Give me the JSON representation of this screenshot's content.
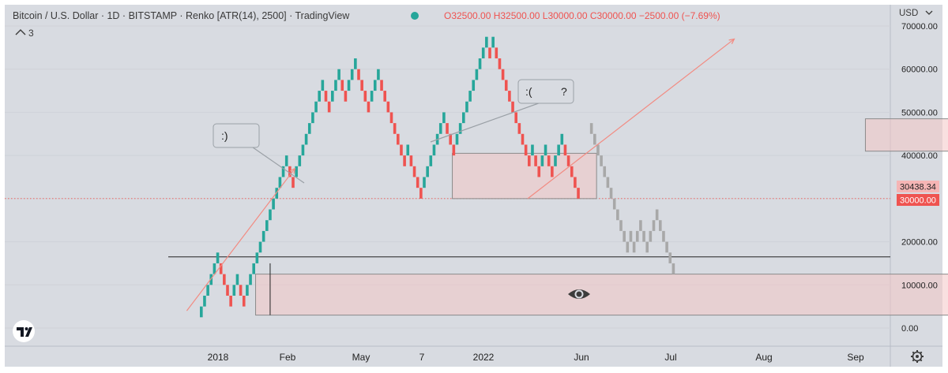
{
  "header": {
    "title": "Bitcoin / U.S. Dollar · 1D · BITSTAMP · Renko [ATR(14), 2500] · TradingView",
    "ohlc": "O32500.00 H32500.00 L30000.00 C30000.00 −2500.00 (−7.69%)",
    "collapse_label": "3"
  },
  "price_scale": {
    "currency": "USD",
    "ticks": [
      {
        "value": 0,
        "label": "0.00"
      },
      {
        "value": 10000,
        "label": "10000.00"
      },
      {
        "value": 20000,
        "label": "20000.00"
      },
      {
        "value": 30000,
        "label": "30000.00"
      },
      {
        "value": 40000,
        "label": "40000.00"
      },
      {
        "value": 50000,
        "label": "50000.00"
      },
      {
        "value": 60000,
        "label": "60000.00"
      },
      {
        "value": 70000,
        "label": "70000.00"
      }
    ],
    "last_price_label": "30438.34",
    "close_label": "30000.00"
  },
  "time_axis": {
    "labels": [
      {
        "label": "2018",
        "bold": true
      },
      {
        "label": "Feb",
        "bold": false
      },
      {
        "label": "May",
        "bold": false
      },
      {
        "label": "7",
        "bold": false
      },
      {
        "label": "2022",
        "bold": true
      },
      {
        "label": "Jun",
        "bold": false
      },
      {
        "label": "Jul",
        "bold": false
      },
      {
        "label": "Aug",
        "bold": false
      },
      {
        "label": "Sep",
        "bold": false
      }
    ]
  },
  "annotations": {
    "bubble_smile": ":)",
    "bubble_sad": ":(",
    "bubble_question": "?"
  },
  "colors": {
    "up": "#26a69a",
    "down": "#ef5350",
    "projection": "#a8a8a8",
    "zone_fill": "#f4c7c7",
    "arrow": "#f28b82",
    "price_line": "#ef5350",
    "background": "#ffffff",
    "pane_border": "#d1d4dc"
  },
  "chart_data": {
    "type": "renko",
    "box_size": 2500,
    "ylim": [
      -3000,
      72000
    ],
    "bricks": [
      {
        "dir": "up",
        "low": 2500
      },
      {
        "dir": "up",
        "low": 5000
      },
      {
        "dir": "up",
        "low": 7500
      },
      {
        "dir": "up",
        "low": 10000
      },
      {
        "dir": "up",
        "low": 12500
      },
      {
        "dir": "up",
        "low": 15000
      },
      {
        "dir": "down",
        "low": 12500
      },
      {
        "dir": "down",
        "low": 10000
      },
      {
        "dir": "down",
        "low": 7500
      },
      {
        "dir": "down",
        "low": 5000
      },
      {
        "dir": "up",
        "low": 7500
      },
      {
        "dir": "up",
        "low": 10000
      },
      {
        "dir": "down",
        "low": 7500
      },
      {
        "dir": "down",
        "low": 5000
      },
      {
        "dir": "up",
        "low": 7500
      },
      {
        "dir": "up",
        "low": 10000
      },
      {
        "dir": "up",
        "low": 12500
      },
      {
        "dir": "up",
        "low": 15000
      },
      {
        "dir": "up",
        "low": 17500
      },
      {
        "dir": "up",
        "low": 20000
      },
      {
        "dir": "up",
        "low": 22500
      },
      {
        "dir": "up",
        "low": 25000
      },
      {
        "dir": "up",
        "low": 27500
      },
      {
        "dir": "up",
        "low": 30000
      },
      {
        "dir": "up",
        "low": 32500
      },
      {
        "dir": "up",
        "low": 35000
      },
      {
        "dir": "up",
        "low": 37500
      },
      {
        "dir": "down",
        "low": 35000
      },
      {
        "dir": "down",
        "low": 32500
      },
      {
        "dir": "up",
        "low": 35000
      },
      {
        "dir": "up",
        "low": 37500
      },
      {
        "dir": "up",
        "low": 40000
      },
      {
        "dir": "up",
        "low": 42500
      },
      {
        "dir": "up",
        "low": 45000
      },
      {
        "dir": "up",
        "low": 47500
      },
      {
        "dir": "up",
        "low": 50000
      },
      {
        "dir": "up",
        "low": 52500
      },
      {
        "dir": "up",
        "low": 55000
      },
      {
        "dir": "down",
        "low": 52500
      },
      {
        "dir": "down",
        "low": 50000
      },
      {
        "dir": "up",
        "low": 52500
      },
      {
        "dir": "up",
        "low": 55000
      },
      {
        "dir": "up",
        "low": 57500
      },
      {
        "dir": "down",
        "low": 55000
      },
      {
        "dir": "down",
        "low": 52500
      },
      {
        "dir": "up",
        "low": 55000
      },
      {
        "dir": "up",
        "low": 57500
      },
      {
        "dir": "up",
        "low": 60000
      },
      {
        "dir": "down",
        "low": 57500
      },
      {
        "dir": "down",
        "low": 55000
      },
      {
        "dir": "down",
        "low": 52500
      },
      {
        "dir": "down",
        "low": 50000
      },
      {
        "dir": "up",
        "low": 52500
      },
      {
        "dir": "up",
        "low": 55000
      },
      {
        "dir": "up",
        "low": 57500
      },
      {
        "dir": "down",
        "low": 55000
      },
      {
        "dir": "down",
        "low": 52500
      },
      {
        "dir": "down",
        "low": 50000
      },
      {
        "dir": "down",
        "low": 47500
      },
      {
        "dir": "down",
        "low": 45000
      },
      {
        "dir": "down",
        "low": 42500
      },
      {
        "dir": "down",
        "low": 40000
      },
      {
        "dir": "down",
        "low": 37500
      },
      {
        "dir": "up",
        "low": 40000
      },
      {
        "dir": "down",
        "low": 37500
      },
      {
        "dir": "down",
        "low": 35000
      },
      {
        "dir": "down",
        "low": 32500
      },
      {
        "dir": "down",
        "low": 30000
      },
      {
        "dir": "up",
        "low": 32500
      },
      {
        "dir": "up",
        "low": 35000
      },
      {
        "dir": "up",
        "low": 37500
      },
      {
        "dir": "up",
        "low": 40000
      },
      {
        "dir": "up",
        "low": 42500
      },
      {
        "dir": "up",
        "low": 45000
      },
      {
        "dir": "up",
        "low": 47500
      },
      {
        "dir": "down",
        "low": 45000
      },
      {
        "dir": "down",
        "low": 42500
      },
      {
        "dir": "down",
        "low": 40000
      },
      {
        "dir": "up",
        "low": 42500
      },
      {
        "dir": "up",
        "low": 45000
      },
      {
        "dir": "up",
        "low": 47500
      },
      {
        "dir": "up",
        "low": 50000
      },
      {
        "dir": "up",
        "low": 52500
      },
      {
        "dir": "up",
        "low": 55000
      },
      {
        "dir": "up",
        "low": 57500
      },
      {
        "dir": "up",
        "low": 60000
      },
      {
        "dir": "up",
        "low": 62500
      },
      {
        "dir": "up",
        "low": 65000
      },
      {
        "dir": "down",
        "low": 62500
      },
      {
        "dir": "up",
        "low": 65000
      },
      {
        "dir": "down",
        "low": 62500
      },
      {
        "dir": "down",
        "low": 60000
      },
      {
        "dir": "down",
        "low": 57500
      },
      {
        "dir": "down",
        "low": 55000
      },
      {
        "dir": "down",
        "low": 52500
      },
      {
        "dir": "down",
        "low": 50000
      },
      {
        "dir": "down",
        "low": 47500
      },
      {
        "dir": "down",
        "low": 45000
      },
      {
        "dir": "down",
        "low": 42500
      },
      {
        "dir": "down",
        "low": 40000
      },
      {
        "dir": "down",
        "low": 37500
      },
      {
        "dir": "up",
        "low": 40000
      },
      {
        "dir": "down",
        "low": 37500
      },
      {
        "dir": "down",
        "low": 35000
      },
      {
        "dir": "up",
        "low": 37500
      },
      {
        "dir": "up",
        "low": 40000
      },
      {
        "dir": "down",
        "low": 37500
      },
      {
        "dir": "down",
        "low": 35000
      },
      {
        "dir": "up",
        "low": 37500
      },
      {
        "dir": "up",
        "low": 40000
      },
      {
        "dir": "up",
        "low": 42500
      },
      {
        "dir": "down",
        "low": 40000
      },
      {
        "dir": "down",
        "low": 37500
      },
      {
        "dir": "down",
        "low": 35000
      },
      {
        "dir": "down",
        "low": 32500
      },
      {
        "dir": "down",
        "low": 30000
      }
    ],
    "projection_bricks": [
      {
        "low": 45000
      },
      {
        "low": 42500
      },
      {
        "low": 40000
      },
      {
        "low": 37500
      },
      {
        "low": 35000
      },
      {
        "low": 32500
      },
      {
        "low": 30000
      },
      {
        "low": 27500
      },
      {
        "low": 25000
      },
      {
        "low": 22500
      },
      {
        "low": 20000
      },
      {
        "low": 17500
      },
      {
        "low": 20000
      },
      {
        "low": 17500
      },
      {
        "low": 20000
      },
      {
        "low": 22500
      },
      {
        "low": 20000
      },
      {
        "low": 17500
      },
      {
        "low": 20000
      },
      {
        "low": 22500
      },
      {
        "low": 25000
      },
      {
        "low": 22500
      },
      {
        "low": 20000
      },
      {
        "low": 17500
      },
      {
        "low": 15000
      },
      {
        "low": 12500
      }
    ],
    "horizontal_levels": [
      {
        "value": 16500,
        "style": "solid"
      },
      {
        "value": 30000,
        "style": "dotted"
      }
    ],
    "zones": [
      {
        "x0": 77,
        "x1": 121,
        "y0": 30000,
        "y1": 40500
      },
      {
        "x0": 203,
        "x1": 265,
        "y0": 41000,
        "y1": 48500
      },
      {
        "x0": 17,
        "x1": 382,
        "y0": 3000,
        "y1": 12500
      }
    ],
    "arrows": [
      {
        "x0": -4,
        "y0": 4000,
        "x1": 29,
        "y1": 37000
      },
      {
        "x0": 100,
        "y0": 30000,
        "x1": 163,
        "y1": 67000
      },
      {
        "x0": 247,
        "y0": 67000,
        "x1": 273,
        "y1": 36000
      },
      {
        "x0": 324,
        "y0": 39000,
        "x1": 346,
        "y1": 16000
      }
    ],
    "wick_x": 21,
    "wick_range": [
      3000,
      15000
    ],
    "grid": true
  }
}
